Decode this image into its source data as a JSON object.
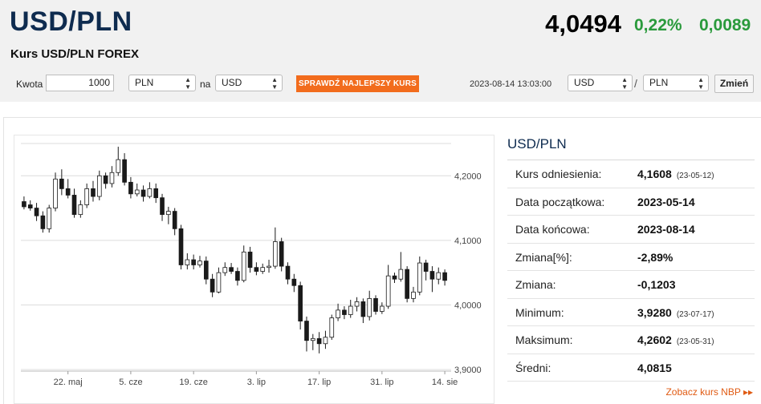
{
  "header": {
    "title": "USD/PLN",
    "subtitle": "Kurs USD/PLN FOREX",
    "price": "4,0494",
    "change_pct": "0,22%",
    "change_abs": "0,0089"
  },
  "converter": {
    "amount_label": "Kwota",
    "amount_value": "1000",
    "from_currency": "PLN",
    "to_label": "na",
    "to_currency": "USD",
    "cta_label": "SPRAWDŹ NAJLEPSZY KURS",
    "timestamp": "2023-08-14 13:03:00",
    "pair_base": "USD",
    "pair_separator": "/",
    "pair_quote": "PLN",
    "change_button": "Zmień"
  },
  "stats": {
    "title": "USD/PLN",
    "rows": [
      {
        "label": "Kurs odniesienia:",
        "value": "4,1608",
        "date": "(23-05-12)"
      },
      {
        "label": "Data początkowa:",
        "value": "2023-05-14",
        "date": ""
      },
      {
        "label": "Data końcowa:",
        "value": "2023-08-14",
        "date": ""
      },
      {
        "label": "Zmiana[%]:",
        "value": "-2,89%",
        "date": ""
      },
      {
        "label": "Zmiana:",
        "value": "-0,1203",
        "date": ""
      },
      {
        "label": "Minimum:",
        "value": "3,9280",
        "date": "(23-07-17)"
      },
      {
        "label": "Maksimum:",
        "value": "4,2602",
        "date": "(23-05-31)"
      },
      {
        "label": "Średni:",
        "value": "4,0815",
        "date": ""
      }
    ],
    "nbp_link": "Zobacz kurs NBP ▸▸"
  },
  "chart_data": {
    "type": "candlestick",
    "title": "",
    "xlabel": "",
    "ylabel": "",
    "ylim": [
      3.9,
      4.25
    ],
    "y_ticks": [
      4.2,
      4.1,
      4.0,
      3.9
    ],
    "y_tick_labels": [
      "4,2000",
      "4,1000",
      "4,0000",
      "3,9000"
    ],
    "x_tick_labels": [
      "22. maj",
      "5. cze",
      "19. cze",
      "3. lip",
      "17. lip",
      "31. lip",
      "14. sie"
    ],
    "x_tick_index": [
      7,
      17,
      27,
      37,
      47,
      57,
      67
    ],
    "grid": true,
    "colors": {
      "up": "#ffffff",
      "down": "#1a1a1a",
      "outline": "#1a1a1a",
      "grid": "#dcdcdc"
    },
    "candles": [
      [
        4.16,
        4.152,
        4.168,
        4.148
      ],
      [
        4.155,
        4.15,
        4.162,
        4.146
      ],
      [
        4.15,
        4.138,
        4.158,
        4.13
      ],
      [
        4.138,
        4.118,
        4.145,
        4.112
      ],
      [
        4.118,
        4.15,
        4.155,
        4.112
      ],
      [
        4.15,
        4.195,
        4.205,
        4.145
      ],
      [
        4.195,
        4.18,
        4.21,
        4.17
      ],
      [
        4.18,
        4.17,
        4.195,
        4.165
      ],
      [
        4.17,
        4.14,
        4.18,
        4.135
      ],
      [
        4.14,
        4.155,
        4.162,
        4.135
      ],
      [
        4.155,
        4.18,
        4.188,
        4.15
      ],
      [
        4.18,
        4.168,
        4.192,
        4.16
      ],
      [
        4.168,
        4.2,
        4.208,
        4.162
      ],
      [
        4.2,
        4.188,
        4.205,
        4.18
      ],
      [
        4.188,
        4.205,
        4.215,
        4.182
      ],
      [
        4.205,
        4.225,
        4.245,
        4.2
      ],
      [
        4.225,
        4.19,
        4.235,
        4.185
      ],
      [
        4.19,
        4.172,
        4.198,
        4.165
      ],
      [
        4.172,
        4.178,
        4.188,
        4.168
      ],
      [
        4.178,
        4.168,
        4.185,
        4.16
      ],
      [
        4.168,
        4.18,
        4.19,
        4.165
      ],
      [
        4.18,
        4.166,
        4.188,
        4.158
      ],
      [
        4.166,
        4.14,
        4.172,
        4.13
      ],
      [
        4.14,
        4.145,
        4.152,
        4.125
      ],
      [
        4.145,
        4.118,
        4.15,
        4.108
      ],
      [
        4.118,
        4.062,
        4.124,
        4.055
      ],
      [
        4.062,
        4.07,
        4.08,
        4.055
      ],
      [
        4.07,
        4.062,
        4.078,
        4.055
      ],
      [
        4.062,
        4.068,
        4.076,
        4.058
      ],
      [
        4.068,
        4.04,
        4.075,
        4.032
      ],
      [
        4.04,
        4.02,
        4.048,
        4.012
      ],
      [
        4.02,
        4.05,
        4.058,
        4.018
      ],
      [
        4.05,
        4.058,
        4.066,
        4.045
      ],
      [
        4.058,
        4.052,
        4.065,
        4.048
      ],
      [
        4.052,
        4.038,
        4.058,
        4.03
      ],
      [
        4.038,
        4.082,
        4.092,
        4.035
      ],
      [
        4.082,
        4.058,
        4.09,
        4.05
      ],
      [
        4.058,
        4.052,
        4.066,
        4.046
      ],
      [
        4.052,
        4.058,
        4.064,
        4.048
      ],
      [
        4.058,
        4.06,
        4.07,
        4.05
      ],
      [
        4.06,
        4.098,
        4.12,
        4.056
      ],
      [
        4.098,
        4.06,
        4.104,
        4.052
      ],
      [
        4.06,
        4.04,
        4.066,
        4.032
      ],
      [
        4.04,
        4.03,
        4.048,
        4.02
      ],
      [
        4.03,
        3.975,
        4.036,
        3.962
      ],
      [
        3.975,
        3.945,
        3.982,
        3.928
      ],
      [
        3.945,
        3.948,
        3.955,
        3.93
      ],
      [
        3.948,
        3.94,
        3.958,
        3.925
      ],
      [
        3.94,
        3.95,
        3.96,
        3.932
      ],
      [
        3.95,
        3.98,
        3.985,
        3.946
      ],
      [
        3.98,
        3.992,
        4.002,
        3.975
      ],
      [
        3.992,
        3.985,
        3.998,
        3.978
      ],
      [
        3.985,
        3.998,
        4.008,
        3.98
      ],
      [
        3.998,
        4.005,
        4.012,
        3.99
      ],
      [
        4.005,
        3.982,
        4.01,
        3.972
      ],
      [
        3.982,
        4.01,
        4.022,
        3.976
      ],
      [
        4.01,
        3.99,
        4.015,
        3.985
      ],
      [
        3.99,
        3.998,
        4.004,
        3.986
      ],
      [
        3.998,
        4.045,
        4.062,
        3.994
      ],
      [
        4.045,
        4.04,
        4.05,
        4.034
      ],
      [
        4.04,
        4.055,
        4.082,
        4.036
      ],
      [
        4.055,
        4.01,
        4.06,
        4.004
      ],
      [
        4.01,
        4.02,
        4.028,
        4.004
      ],
      [
        4.02,
        4.065,
        4.075,
        4.015
      ],
      [
        4.065,
        4.052,
        4.07,
        4.038
      ],
      [
        4.052,
        4.04,
        4.06,
        4.02
      ],
      [
        4.04,
        4.05,
        4.058,
        4.032
      ],
      [
        4.05,
        4.038,
        4.055,
        4.03
      ]
    ]
  }
}
